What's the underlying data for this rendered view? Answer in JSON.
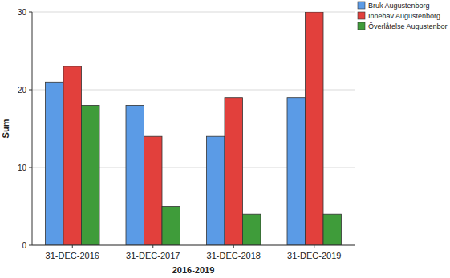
{
  "chart_data": {
    "type": "bar",
    "x_label": "2016-2019",
    "y_label": "Sum",
    "categories": [
      "31-DEC-2016",
      "31-DEC-2017",
      "31-DEC-2018",
      "31-DEC-2019"
    ],
    "series": [
      {
        "name": "Bruk Augustenborg",
        "color": "#5b9be6",
        "values": [
          21,
          18,
          14,
          19
        ]
      },
      {
        "name": "Innehav Augustenborg",
        "color": "#e2403c",
        "values": [
          23,
          14,
          19,
          30
        ]
      },
      {
        "name": "Överlåtelse Augustenbor",
        "color": "#3f9c3a",
        "values": [
          18,
          5,
          4,
          4
        ]
      }
    ],
    "ylim": [
      0,
      30
    ],
    "yticks": [
      0,
      10,
      20,
      30
    ],
    "grid": true,
    "legend": "right"
  }
}
